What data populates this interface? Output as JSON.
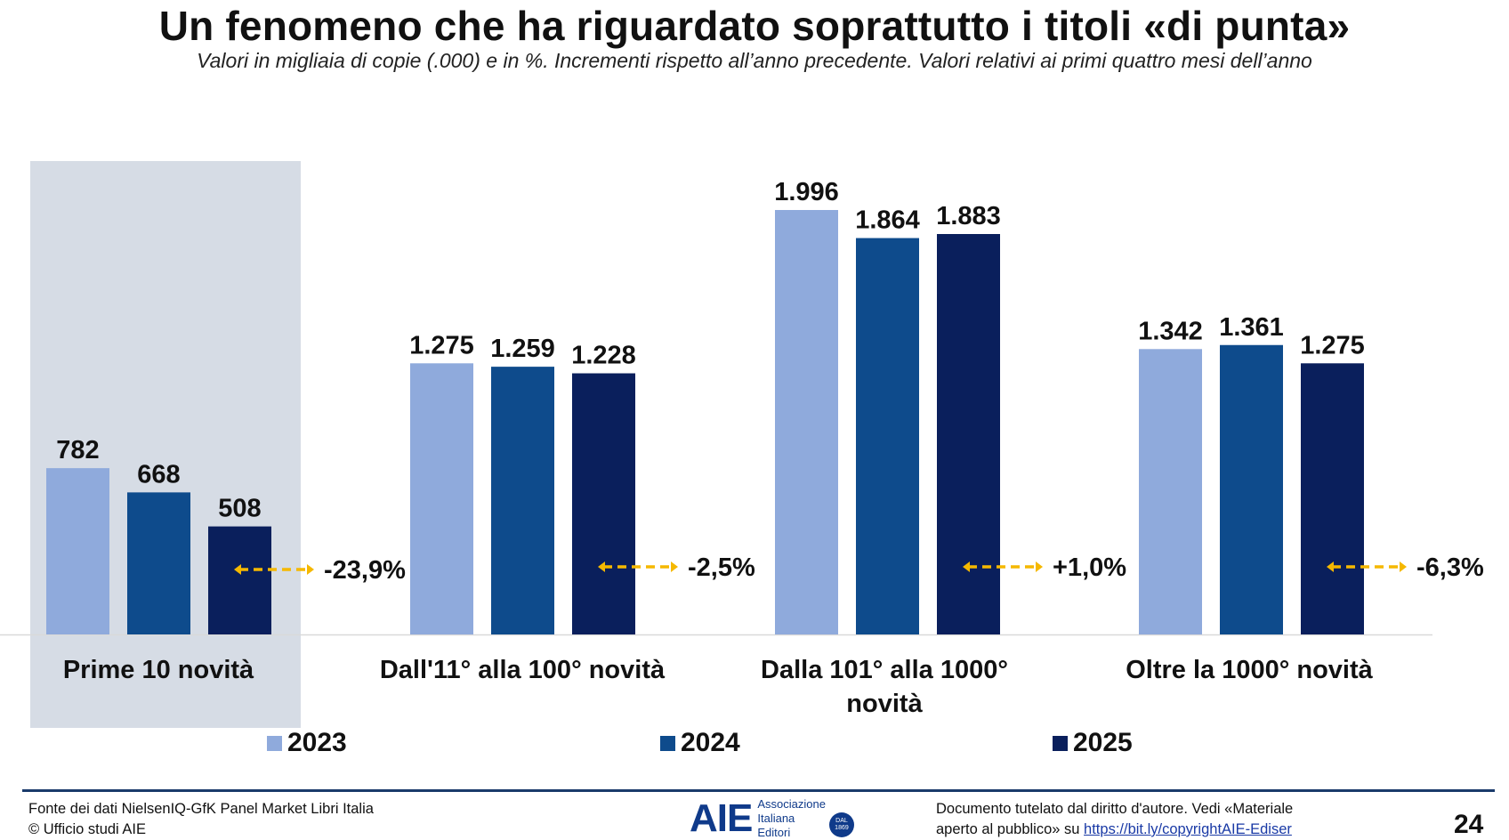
{
  "title": "Un fenomeno che ha riguardato soprattutto i titoli «di punta»",
  "subtitle": "Valori in migliaia di copie (.000) e in %. Incrementi rispetto all’anno precedente. Valori relativi ai primi quattro mesi dell’anno",
  "chart_data": {
    "type": "bar",
    "categories": [
      "Prime 10 novità",
      "Dall'11° alla 100° novità",
      "Dalla 101° alla 1000° novità",
      "Oltre la 1000° novità"
    ],
    "series": [
      {
        "name": "2023",
        "values": [
          782,
          1275,
          1996,
          1342
        ],
        "labels": [
          "782",
          "1.275",
          "1.996",
          "1.342"
        ],
        "color": "#8faadc"
      },
      {
        "name": "2024",
        "values": [
          668,
          1259,
          1864,
          1361
        ],
        "labels": [
          "668",
          "1.259",
          "1.864",
          "1.361"
        ],
        "color": "#0e4b8c"
      },
      {
        "name": "2025",
        "values": [
          508,
          1228,
          1883,
          1275
        ],
        "labels": [
          "508",
          "1.228",
          "1.883",
          "1.275"
        ],
        "color": "#0a1f5c"
      }
    ],
    "changes": [
      "-23,9%",
      "-2,5%",
      "+1,0%",
      "-6,3%"
    ],
    "highlighted_category": "Prime 10 novità",
    "highlight_color": "#d6dce5",
    "arrow_color": "#f5b800",
    "ylim": [
      0,
      2000
    ],
    "legend_position": "bottom",
    "grid": false
  },
  "footer": {
    "source_line1": "Fonte dei dati NielsenIQ-GfK Panel Market Libri Italia",
    "source_line2": "© Ufficio studi AIE",
    "logo_mark": "AIE",
    "logo_line1": "Associazione",
    "logo_line2": "Italiana",
    "logo_line3": "Editori",
    "logo_seal": "DAL 1869",
    "copyright_line1": "Documento tutelato dal diritto d'autore. Vedi «Materiale",
    "copyright_line2_prefix": "aperto al pubblico» su",
    "copyright_link": "https://bit.ly/copyrightAIE-Ediser",
    "page_number": "24"
  }
}
